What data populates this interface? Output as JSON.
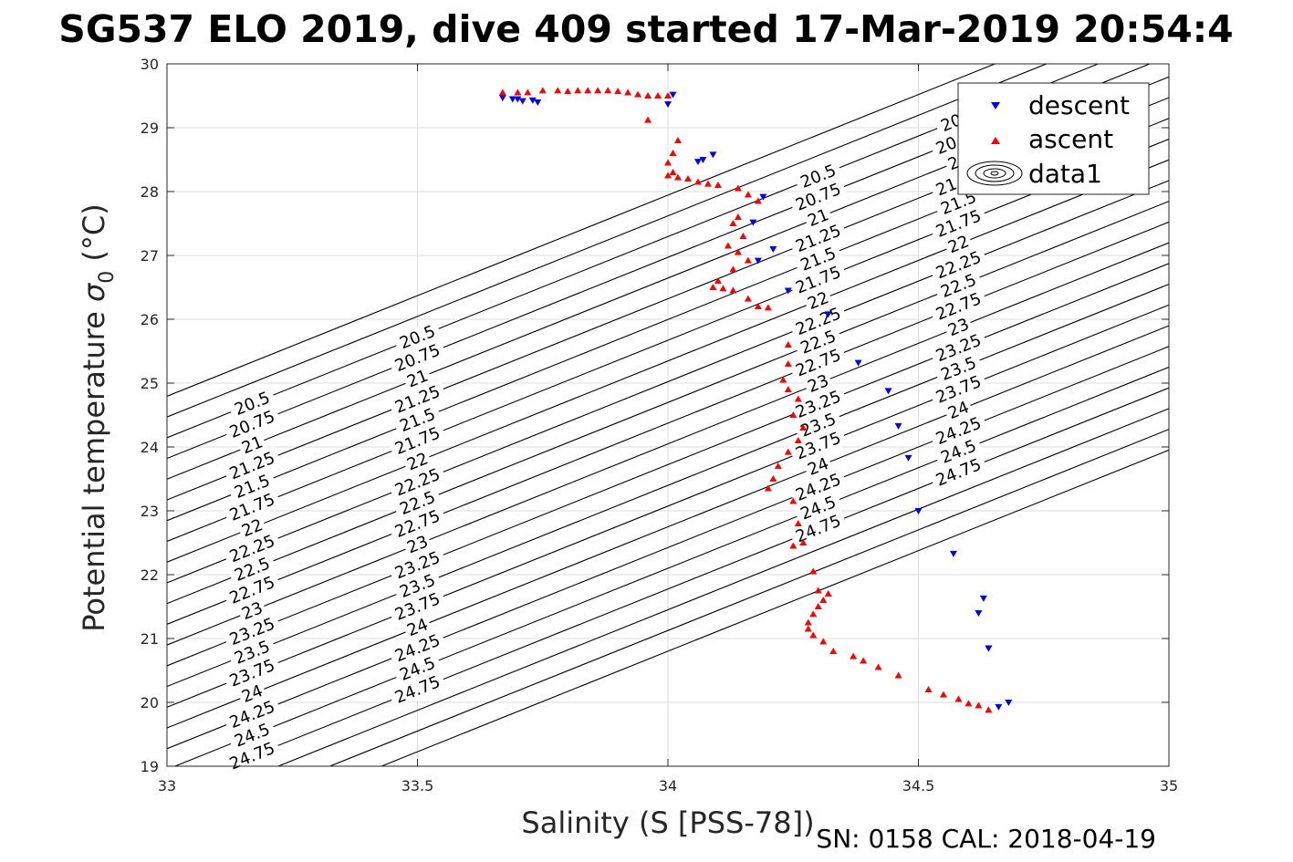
{
  "title": "SG537 ELO 2019, dive 409 started 17-Mar-2019 20:54:4",
  "footer": "SN: 0158  CAL: 2018-04-19",
  "chart_data": {
    "type": "scatter",
    "title": "SG537 ELO 2019, dive 409 started 17-Mar-2019 20:54:4",
    "xlabel": "Salinity (S [PSS-78])",
    "ylabel_text": "Potential temperature ",
    "ylabel_sym": "σ",
    "ylabel_sub": "0",
    "ylabel_unit": " (°C)",
    "xlim": [
      33,
      35
    ],
    "ylim": [
      19,
      30
    ],
    "xticks": [
      "33",
      "33.5",
      "34",
      "34.5",
      "35"
    ],
    "yticks": [
      "19",
      "20",
      "21",
      "22",
      "23",
      "24",
      "25",
      "26",
      "27",
      "28",
      "29",
      "30"
    ],
    "grid": true,
    "legend_position": "top-right",
    "legend": [
      "descent",
      "ascent",
      "data1"
    ],
    "colors": {
      "descent": "#0000ff",
      "ascent": "#ff0000",
      "contour": "#000000",
      "grid": "#dcdcdc"
    },
    "series": [
      {
        "name": "descent",
        "marker": "triangle-down",
        "x": [
          33.67,
          33.69,
          33.7,
          33.73,
          33.71,
          33.74,
          34.0,
          34.01,
          34.06,
          34.07,
          34.09,
          34.19,
          34.17,
          34.21,
          34.18,
          34.24,
          34.32,
          34.38,
          34.44,
          34.46,
          34.48,
          34.5,
          34.57,
          34.63,
          34.64,
          34.62,
          34.64,
          34.66,
          34.68
        ],
        "y": [
          29.47,
          29.45,
          29.45,
          29.43,
          29.42,
          29.4,
          29.37,
          29.52,
          28.47,
          28.5,
          28.58,
          27.92,
          27.52,
          27.1,
          26.92,
          26.45,
          26.08,
          25.32,
          24.88,
          24.33,
          23.83,
          23.0,
          22.33,
          21.63,
          20.85,
          21.4,
          20.85,
          19.93,
          20.0
        ]
      },
      {
        "name": "ascent",
        "marker": "triangle-up",
        "x": [
          33.67,
          33.7,
          33.72,
          33.75,
          33.78,
          33.8,
          33.82,
          33.84,
          33.86,
          33.88,
          33.9,
          33.92,
          33.94,
          33.96,
          33.98,
          34.0,
          33.96,
          34.02,
          34.01,
          34.0,
          34.01,
          34.0,
          34.02,
          34.04,
          34.06,
          34.08,
          34.1,
          34.14,
          34.16,
          34.18,
          34.14,
          34.13,
          34.15,
          34.12,
          34.14,
          34.16,
          34.13,
          34.1,
          34.09,
          34.11,
          34.13,
          34.16,
          34.18,
          34.2,
          34.24,
          34.24,
          34.23,
          34.24,
          34.26,
          34.25,
          34.27,
          34.26,
          34.24,
          34.22,
          34.21,
          34.2,
          34.25,
          34.26,
          34.27,
          34.25,
          34.29,
          34.3,
          34.32,
          34.31,
          34.3,
          34.29,
          34.28,
          34.28,
          34.29,
          34.31,
          34.33,
          34.37,
          34.39,
          34.42,
          34.46,
          34.52,
          34.55,
          34.58,
          34.6,
          34.62,
          34.64
        ],
        "y": [
          29.55,
          29.55,
          29.55,
          29.58,
          29.58,
          29.57,
          29.58,
          29.58,
          29.58,
          29.58,
          29.57,
          29.55,
          29.52,
          29.5,
          29.5,
          29.5,
          29.12,
          28.8,
          28.6,
          28.45,
          28.3,
          28.25,
          28.22,
          28.2,
          28.15,
          28.12,
          28.1,
          28.05,
          27.95,
          27.85,
          27.6,
          27.5,
          27.3,
          27.15,
          27.05,
          26.92,
          26.78,
          26.6,
          26.5,
          26.48,
          26.45,
          26.32,
          26.2,
          26.18,
          25.6,
          25.3,
          25.05,
          24.9,
          24.75,
          24.5,
          24.3,
          24.1,
          23.92,
          23.7,
          23.5,
          23.35,
          23.15,
          22.8,
          22.5,
          22.45,
          22.05,
          21.75,
          21.7,
          21.6,
          21.5,
          21.38,
          21.25,
          21.15,
          21.05,
          20.95,
          20.8,
          20.72,
          20.65,
          20.55,
          20.42,
          20.2,
          20.12,
          20.05,
          19.98,
          19.95,
          19.88
        ]
      }
    ],
    "contour_levels": [
      "20.5",
      "20.75",
      "21",
      "21.25",
      "21.5",
      "21.75",
      "22",
      "22.25",
      "22.5",
      "22.75",
      "23",
      "23.25",
      "23.5",
      "23.75",
      "24",
      "24.25",
      "24.5",
      "24.75"
    ]
  }
}
